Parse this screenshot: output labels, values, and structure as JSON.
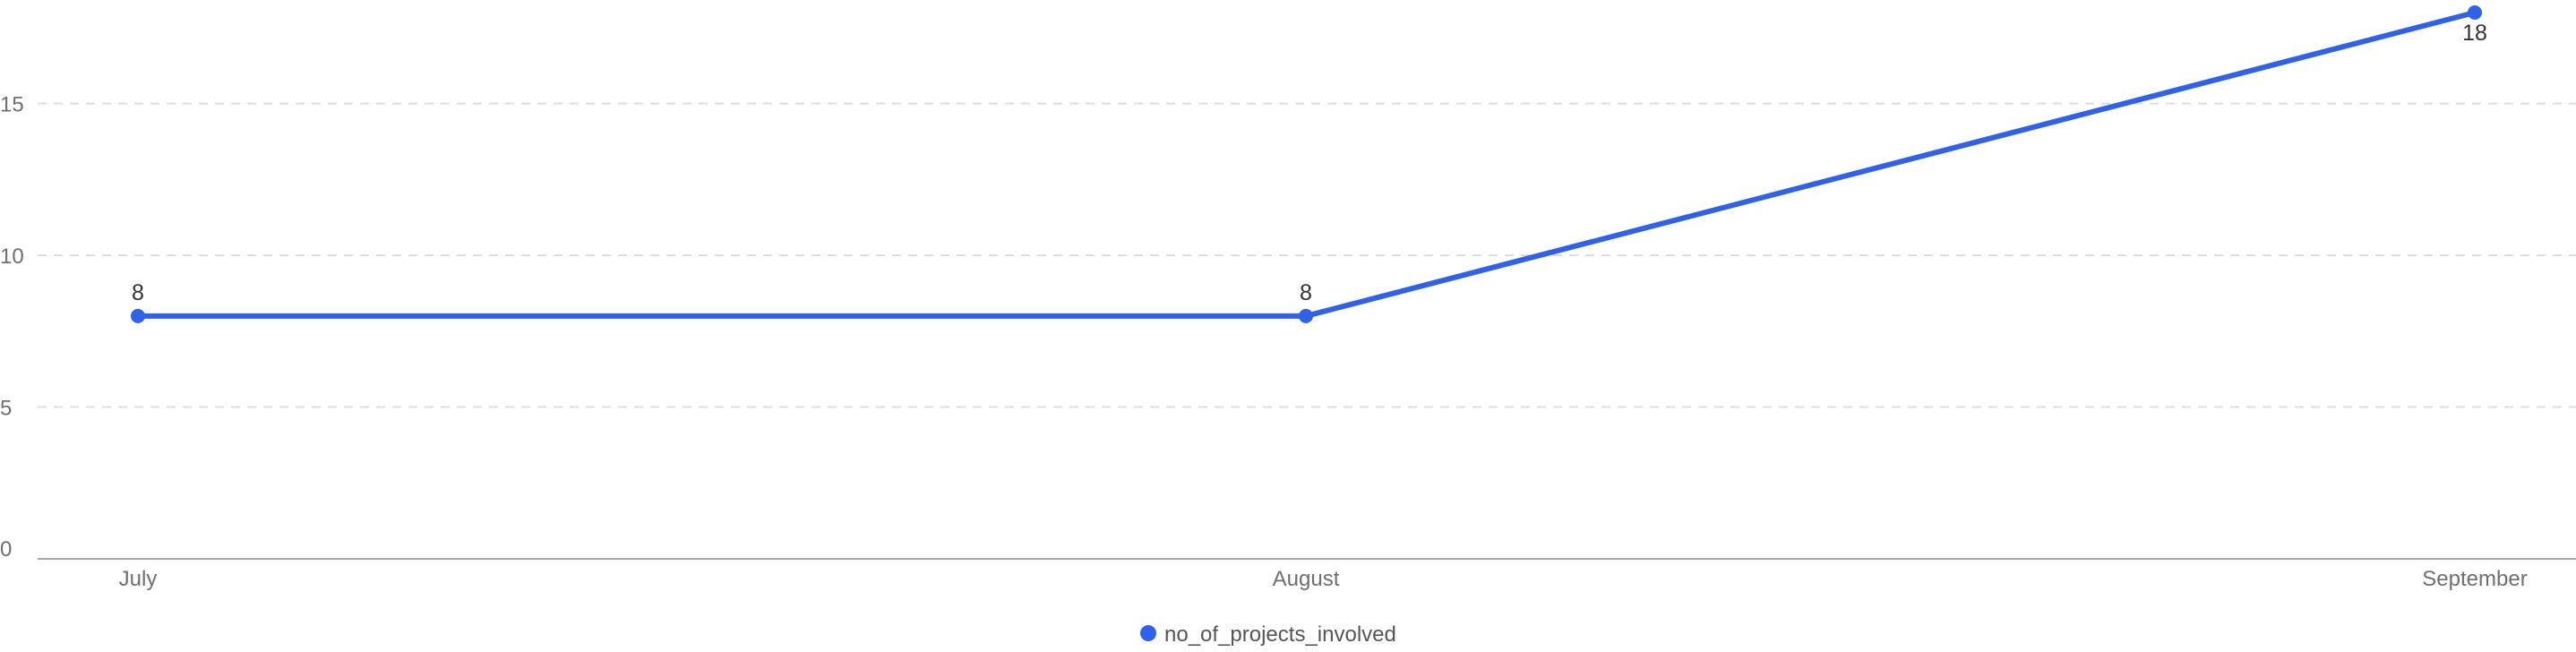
{
  "chart_data": {
    "type": "line",
    "categories": [
      "July",
      "August",
      "September"
    ],
    "series": [
      {
        "name": "no_of_projects_involved",
        "values": [
          8,
          8,
          18
        ],
        "data_labels": [
          "8",
          "8",
          "18"
        ]
      }
    ],
    "y_ticks": [
      "0",
      "5",
      "10",
      "15"
    ],
    "ylim": [
      0,
      18
    ],
    "grid": true,
    "legend_position": "bottom-center",
    "colors": {
      "series": "#2f62e8",
      "grid": "#dcdcdc",
      "axis": "#a9a9a9",
      "tick_text": "#6f6f6f",
      "data_label_text": "#333333"
    }
  }
}
